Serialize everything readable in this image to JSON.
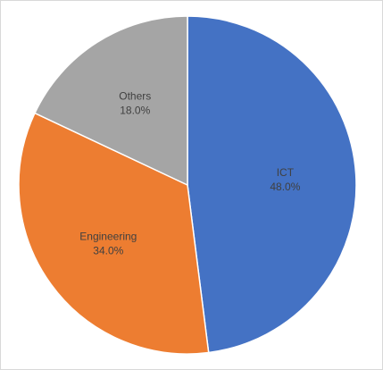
{
  "chart_data": {
    "type": "pie",
    "title": "",
    "slices": [
      {
        "label": "ICT",
        "value": 48.0,
        "value_label": "48.0%",
        "color": "#4472C4"
      },
      {
        "label": "Engineering",
        "value": 34.0,
        "value_label": "34.0%",
        "color": "#ED7D31"
      },
      {
        "label": "Others",
        "value": 18.0,
        "value_label": "18.0%",
        "color": "#A5A5A5"
      }
    ],
    "start_angle": "12 o'clock",
    "direction": "clockwise",
    "legend": "none",
    "data_labels": "inside"
  }
}
